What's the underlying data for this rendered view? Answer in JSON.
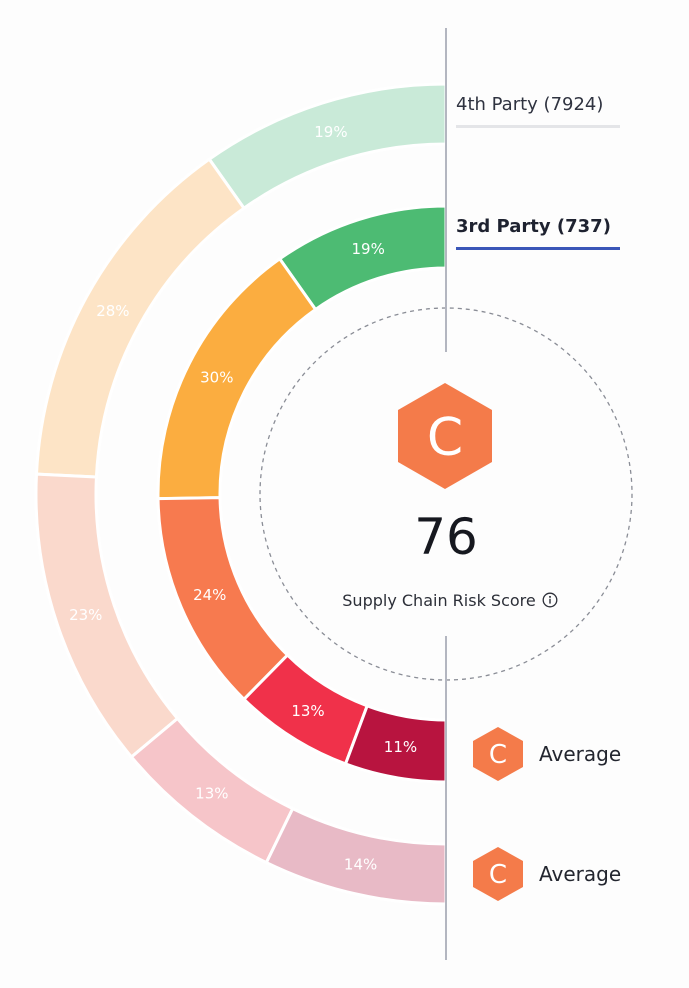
{
  "legend": {
    "fourth_party": "4th Party (7924)",
    "third_party": "3rd Party (737)"
  },
  "score": {
    "grade": "C",
    "value": "76",
    "label": "Supply Chain Risk Score",
    "info_icon": "info-icon"
  },
  "rings": {
    "outer": {
      "name": "4th Party",
      "segments": [
        {
          "label": "19%",
          "value": 19,
          "color": "#c9ead8"
        },
        {
          "label": "28%",
          "value": 28,
          "color": "#fde4c6"
        },
        {
          "label": "23%",
          "value": 23,
          "color": "#fad9cc"
        },
        {
          "label": "13%",
          "value": 13,
          "color": "#f6c5c9"
        },
        {
          "label": "14%",
          "value": 14,
          "color": "#e8bac6"
        }
      ],
      "grade": "C",
      "grade_label": "Average"
    },
    "inner": {
      "name": "3rd Party",
      "segments": [
        {
          "label": "19%",
          "value": 19,
          "color": "#4dbb73"
        },
        {
          "label": "30%",
          "value": 30,
          "color": "#fbad40"
        },
        {
          "label": "24%",
          "value": 24,
          "color": "#f77a4f"
        },
        {
          "label": "13%",
          "value": 13,
          "color": "#f0314a"
        },
        {
          "label": "11%",
          "value": 11,
          "color": "#b8143f"
        }
      ],
      "grade": "C",
      "grade_label": "Average"
    }
  },
  "colors": {
    "grade": "#f47b4a",
    "divider": "#b3b6c0",
    "third_party_underline": "#3a56b8",
    "fourth_party_underline": "#e4e5e8"
  }
}
